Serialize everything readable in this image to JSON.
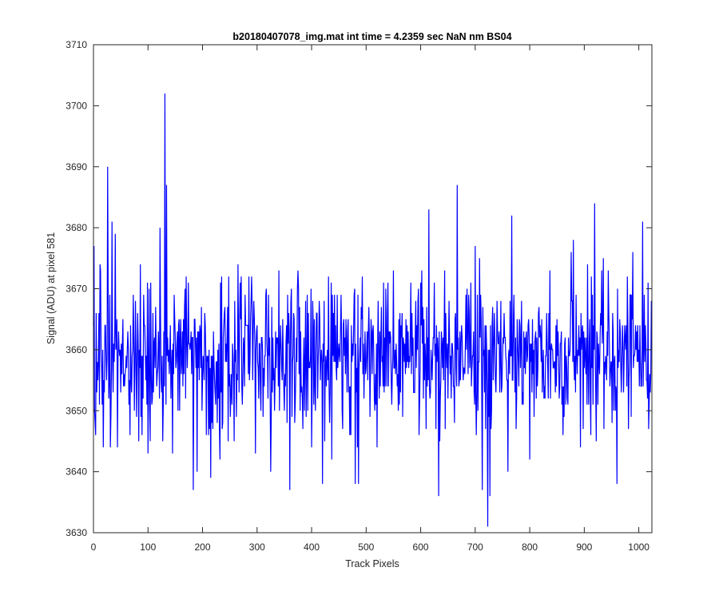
{
  "chart_data": {
    "type": "line",
    "title": "b20180407078_img.mat int time = 4.2359 sec  NaN nm BS04",
    "xlabel": "Track Pixels",
    "ylabel": "Signal (ADU) at pixel 581",
    "xlim": [
      0,
      1024
    ],
    "ylim": [
      3630,
      3710
    ],
    "xticks": [
      0,
      100,
      200,
      300,
      400,
      500,
      600,
      700,
      800,
      900,
      1000
    ],
    "yticks": [
      3630,
      3640,
      3650,
      3660,
      3670,
      3680,
      3690,
      3700,
      3710
    ],
    "grid": false,
    "series_color": "#0000ff",
    "axis_color": "#262626",
    "series": [
      {
        "n_points": 1024,
        "mean": 3659,
        "std": 6,
        "min": 3631,
        "max": 3702,
        "peaks": [
          {
            "x": 1,
            "y": 3677
          },
          {
            "x": 4,
            "y": 3646
          },
          {
            "x": 12,
            "y": 3674
          },
          {
            "x": 18,
            "y": 3644
          },
          {
            "x": 26,
            "y": 3690
          },
          {
            "x": 31,
            "y": 3644
          },
          {
            "x": 34,
            "y": 3681
          },
          {
            "x": 40,
            "y": 3679
          },
          {
            "x": 44,
            "y": 3644
          },
          {
            "x": 86,
            "y": 3674
          },
          {
            "x": 100,
            "y": 3643
          },
          {
            "x": 122,
            "y": 3680
          },
          {
            "x": 127,
            "y": 3645
          },
          {
            "x": 131,
            "y": 3702
          },
          {
            "x": 134,
            "y": 3687
          },
          {
            "x": 145,
            "y": 3643
          },
          {
            "x": 183,
            "y": 3637
          },
          {
            "x": 190,
            "y": 3640
          },
          {
            "x": 215,
            "y": 3639
          },
          {
            "x": 232,
            "y": 3642
          },
          {
            "x": 258,
            "y": 3645
          },
          {
            "x": 290,
            "y": 3672
          },
          {
            "x": 325,
            "y": 3640
          },
          {
            "x": 340,
            "y": 3673
          },
          {
            "x": 360,
            "y": 3637
          },
          {
            "x": 375,
            "y": 3673
          },
          {
            "x": 400,
            "y": 3644
          },
          {
            "x": 420,
            "y": 3638
          },
          {
            "x": 437,
            "y": 3642
          },
          {
            "x": 480,
            "y": 3638
          },
          {
            "x": 486,
            "y": 3638
          },
          {
            "x": 520,
            "y": 3644
          },
          {
            "x": 550,
            "y": 3673
          },
          {
            "x": 602,
            "y": 3673
          },
          {
            "x": 615,
            "y": 3683
          },
          {
            "x": 633,
            "y": 3636
          },
          {
            "x": 644,
            "y": 3673
          },
          {
            "x": 667,
            "y": 3687
          },
          {
            "x": 700,
            "y": 3677
          },
          {
            "x": 713,
            "y": 3637
          },
          {
            "x": 723,
            "y": 3631
          },
          {
            "x": 727,
            "y": 3636
          },
          {
            "x": 760,
            "y": 3673
          },
          {
            "x": 760,
            "y": 3640
          },
          {
            "x": 767,
            "y": 3682
          },
          {
            "x": 785,
            "y": 3668
          },
          {
            "x": 800,
            "y": 3642
          },
          {
            "x": 837,
            "y": 3673
          },
          {
            "x": 876,
            "y": 3676
          },
          {
            "x": 880,
            "y": 3678
          },
          {
            "x": 906,
            "y": 3674
          },
          {
            "x": 919,
            "y": 3684
          },
          {
            "x": 960,
            "y": 3638
          },
          {
            "x": 984,
            "y": 3669
          },
          {
            "x": 1007,
            "y": 3681
          },
          {
            "x": 1018,
            "y": 3647
          },
          {
            "x": 1023,
            "y": 3668
          }
        ]
      }
    ]
  }
}
